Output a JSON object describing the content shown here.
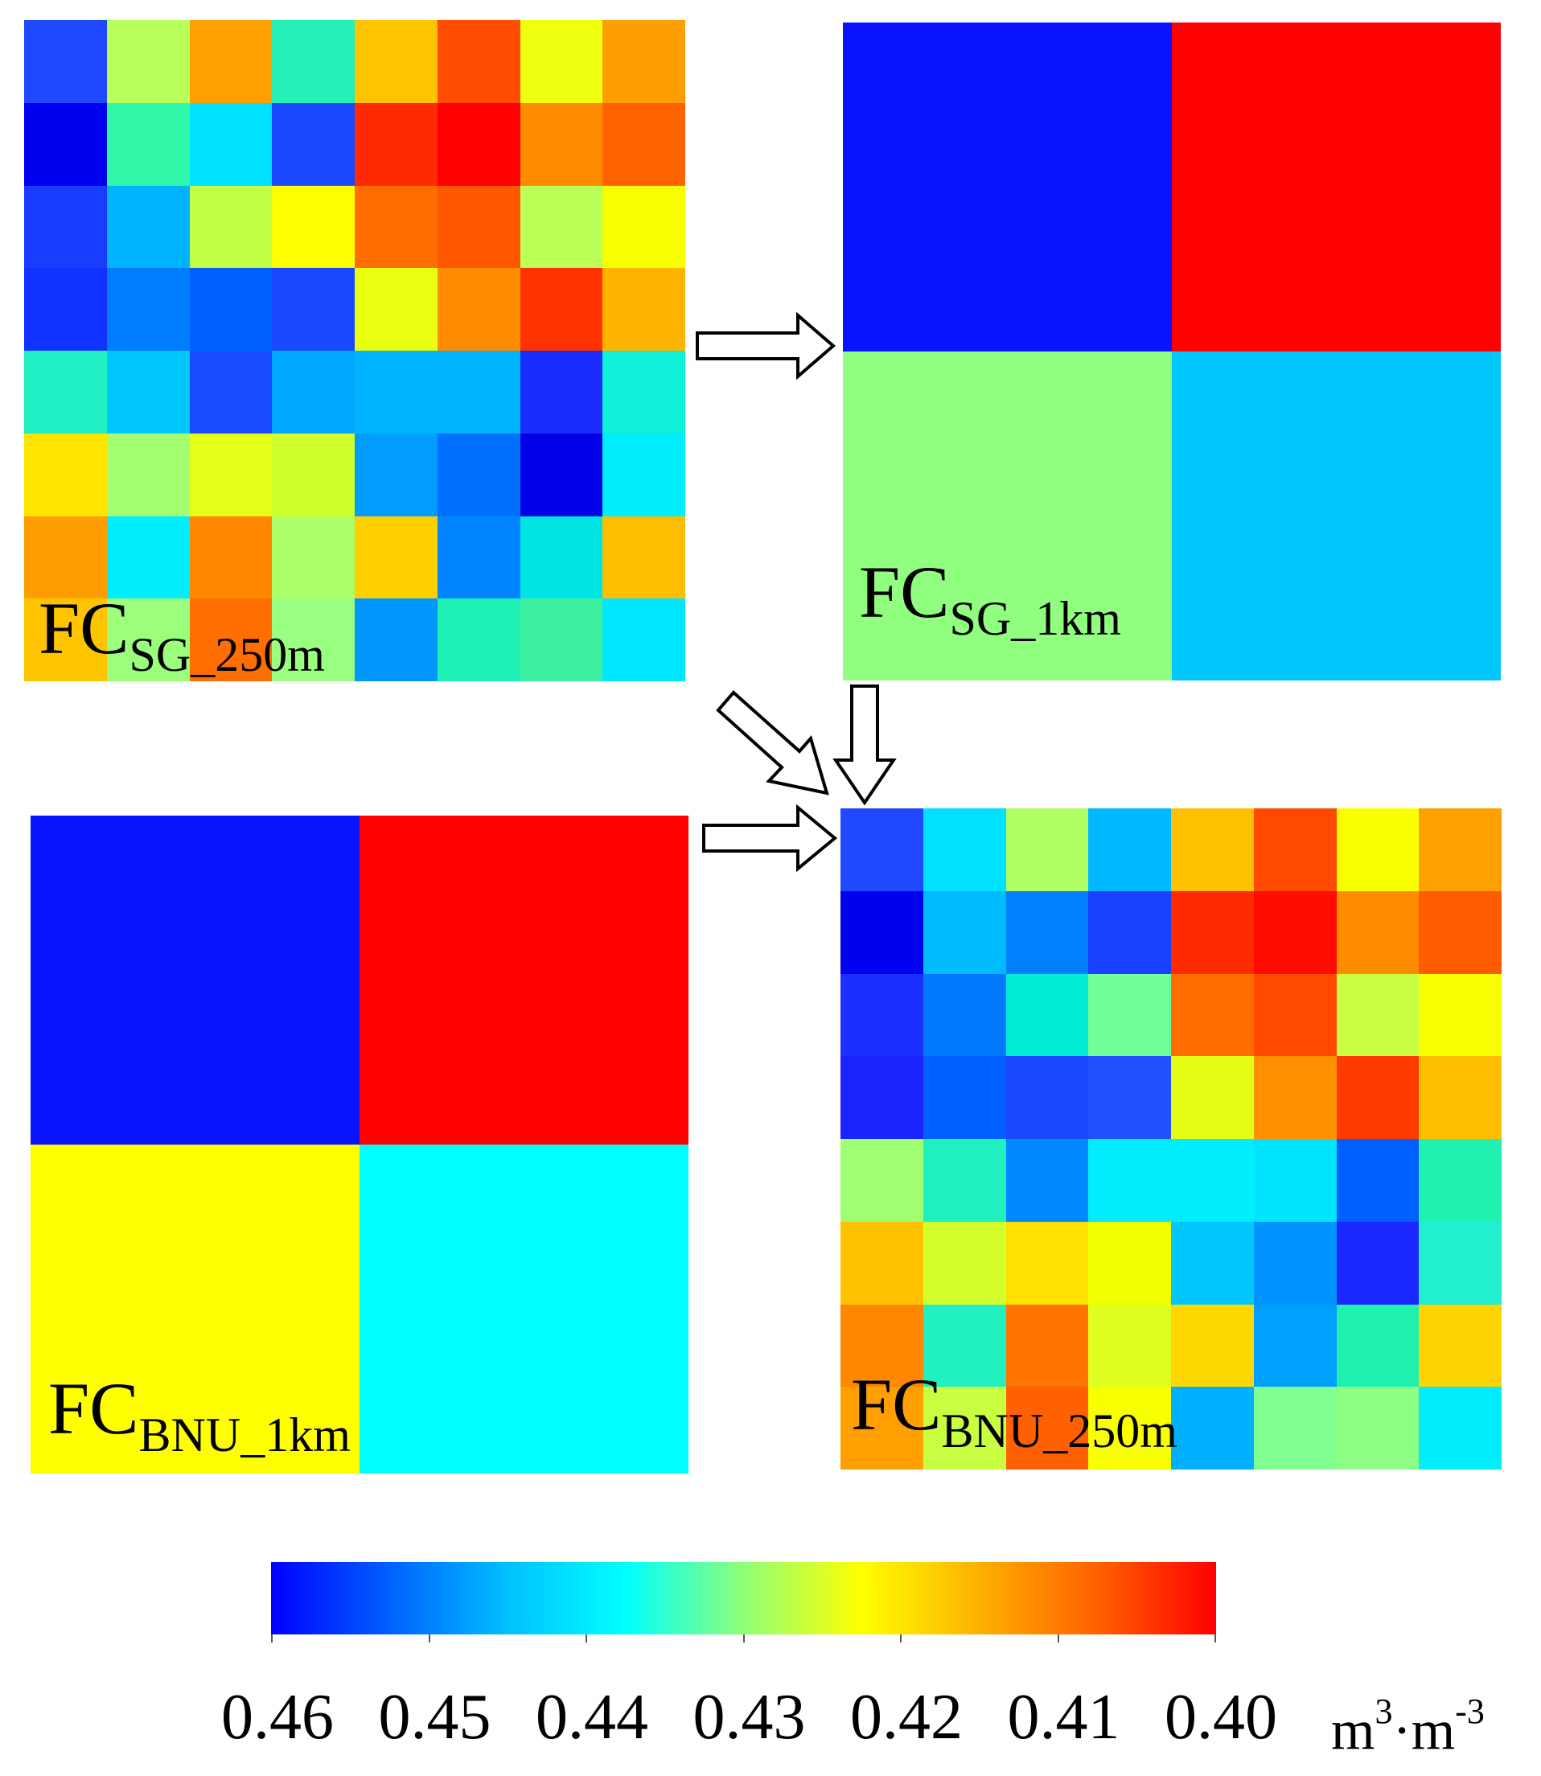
{
  "colormap": [
    "#0000ff",
    "#0060ff",
    "#00c0ff",
    "#00ffff",
    "#90ff78",
    "#ffff00",
    "#ffb000",
    "#ff6000",
    "#ff0000"
  ],
  "colorbar": {
    "ticks": [
      "0.46",
      "0.45",
      "0.44",
      "0.43",
      "0.42",
      "0.41",
      "0.40"
    ],
    "range": [
      0.46,
      0.4
    ],
    "unit_base": "m",
    "unit_exp1": "3",
    "unit_sep": "·m",
    "unit_exp2": "-3"
  },
  "panels": {
    "sg_250m": {
      "label_main": "FC",
      "label_sub": "SG_250m",
      "grid": [
        [
          "#1f48ff",
          "#b8ff5c",
          "#ffa000",
          "#24f0b8",
          "#ffc400",
          "#ff4c00",
          "#f0ff10",
          "#ff9e00"
        ],
        [
          "#0000f0",
          "#30f8a8",
          "#00e0ff",
          "#1a48ff",
          "#ff2a00",
          "#ff0000",
          "#ff8c00",
          "#ff6400"
        ],
        [
          "#1a3cff",
          "#00b4ff",
          "#c4ff48",
          "#ffff00",
          "#ff6c00",
          "#ff5600",
          "#bcff56",
          "#f8ff00"
        ],
        [
          "#1232ff",
          "#007cff",
          "#0060ff",
          "#1a48ff",
          "#e8ff12",
          "#ff8c00",
          "#ff3200",
          "#ffb400"
        ],
        [
          "#20f0c4",
          "#00c8ff",
          "#1a4cff",
          "#00a8ff",
          "#00b4ff",
          "#00b4ff",
          "#1a2cff",
          "#10f0d8"
        ],
        [
          "#ffe400",
          "#a4ff70",
          "#e4ff18",
          "#d0ff2c",
          "#009cff",
          "#0070ff",
          "#0000e8",
          "#00eeff"
        ],
        [
          "#ff9e00",
          "#00eeff",
          "#ff8800",
          "#acff68",
          "#ffd000",
          "#0084ff",
          "#00e4e4",
          "#ffbe00"
        ],
        [
          "#ffc400",
          "#9cff7c",
          "#ff6e00",
          "#98ff80",
          "#0098ff",
          "#1cf0b4",
          "#3cf0a0",
          "#00e8ff"
        ]
      ]
    },
    "sg_1km": {
      "label_main": "FC",
      "label_sub": "SG_1km",
      "grid": [
        [
          "#0a14ff",
          "#ff0000"
        ],
        [
          "#90ff80",
          "#00c8ff"
        ]
      ]
    },
    "bnu_1km": {
      "label_main": "FC",
      "label_sub": "BNU_1km",
      "grid": [
        [
          "#0a14ff",
          "#ff0000"
        ],
        [
          "#ffff00",
          "#00ffff"
        ]
      ]
    },
    "bnu_250m": {
      "label_main": "FC",
      "label_sub": "BNU_250m",
      "grid": [
        [
          "#1f48ff",
          "#00e0ff",
          "#b0ff64",
          "#00b8ff",
          "#ffc000",
          "#ff4800",
          "#f8ff00",
          "#ffa000"
        ],
        [
          "#0000f0",
          "#00bcff",
          "#0080ff",
          "#1a40ff",
          "#ff2a00",
          "#ff0c00",
          "#ff8c00",
          "#ff5c00"
        ],
        [
          "#1a30ff",
          "#0078ff",
          "#00ecd8",
          "#70ff98",
          "#ff6c00",
          "#ff4a00",
          "#c8ff40",
          "#f8ff00"
        ],
        [
          "#1a24ff",
          "#0060ff",
          "#1a48ff",
          "#2050ff",
          "#e4ff14",
          "#ff9000",
          "#ff3a00",
          "#ffbe00"
        ],
        [
          "#a0ff70",
          "#20f0c0",
          "#0088ff",
          "#00eeff",
          "#00eeff",
          "#00e4ff",
          "#0060ff",
          "#20f0b0"
        ],
        [
          "#ffc000",
          "#d4ff2c",
          "#ffe000",
          "#f0ff00",
          "#00c8ff",
          "#0094ff",
          "#1a28ff",
          "#20f0d0"
        ],
        [
          "#ff8800",
          "#20f0c0",
          "#ff7400",
          "#e0ff20",
          "#ffd800",
          "#00a0ff",
          "#20f0b0",
          "#ffd400"
        ],
        [
          "#ffa000",
          "#c8ff40",
          "#ff6000",
          "#f8ff00",
          "#00b0ff",
          "#80ff90",
          "#8cff84",
          "#00eeff"
        ]
      ]
    }
  }
}
